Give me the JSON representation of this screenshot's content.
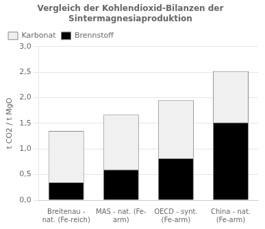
{
  "chart_data": {
    "type": "bar",
    "stacked": true,
    "title": "Vergleich der Kohlendioxid-Bilanzen der\nSintermagnesiaproduktion",
    "ylabel": "t CO2 / t MgO",
    "categories": [
      "Breitenau -\nnat. (Fe-reich)",
      "MAS - nat. (Fe-\narm)",
      "OECD - synt.\n(Fe-arm)",
      "China - nat.\n(Fe-arm)"
    ],
    "series": [
      {
        "name": "Brennstoff",
        "color": "#000000",
        "values": [
          0.35,
          0.6,
          0.82,
          1.52
        ]
      },
      {
        "name": "Karbonat",
        "color": "#f0f0f0",
        "values": [
          1.0,
          1.07,
          1.13,
          1.0
        ]
      }
    ],
    "ylim": [
      0,
      3.0
    ],
    "yticks": [
      {
        "value": 0.0,
        "label": "0,0"
      },
      {
        "value": 0.5,
        "label": "0,5"
      },
      {
        "value": 1.0,
        "label": "1,0"
      },
      {
        "value": 1.5,
        "label": "1,5"
      },
      {
        "value": 2.0,
        "label": "2,0"
      },
      {
        "value": 2.5,
        "label": "2,5"
      },
      {
        "value": 3.0,
        "label": "3,0"
      }
    ],
    "grid": true,
    "legend": "upper left"
  }
}
